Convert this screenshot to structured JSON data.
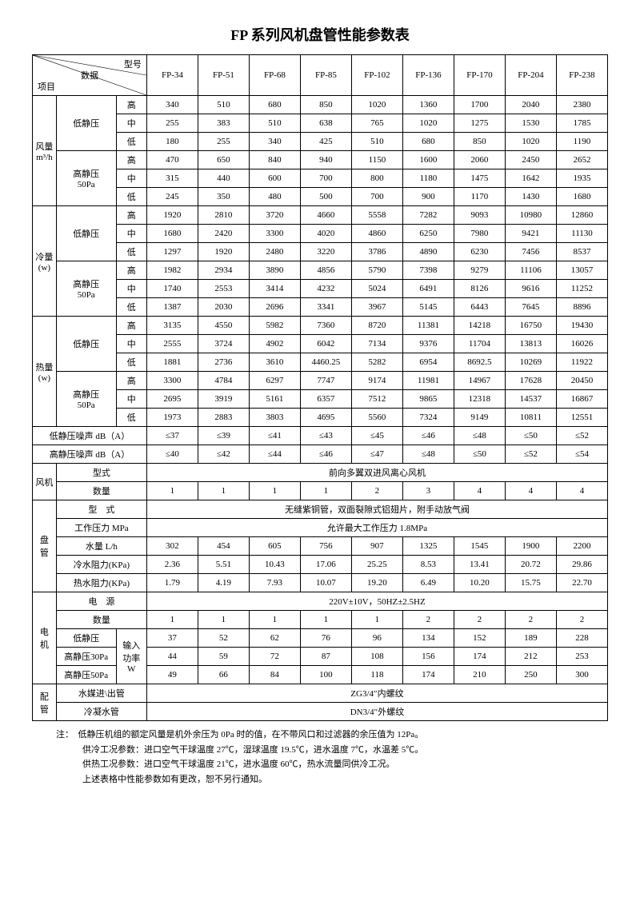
{
  "title": "FP 系列风机盘管性能参数表",
  "header_diag": {
    "top": "型号",
    "mid": "数据",
    "bot": "项目"
  },
  "models": [
    "FP-34",
    "FP-51",
    "FP-68",
    "FP-85",
    "FP-102",
    "FP-136",
    "FP-170",
    "FP-204",
    "FP-238"
  ],
  "row_labels": {
    "airflow": "风量\nm³/h",
    "cooling": "冷量\n(w)",
    "heating": "热量\n(w)",
    "low_sp": "低静压",
    "high_sp": "高静压\n50Pa",
    "hi": "高",
    "mid": "中",
    "lo": "低",
    "noise_low": "低静压噪声 dB（A）",
    "noise_high": "高静压噪声 dB（A）",
    "fan": "风机",
    "fan_type": "型式",
    "fan_qty": "数量",
    "coil": "盘\n管",
    "coil_type": "型　式",
    "coil_press": "工作压力 MPa",
    "coil_water": "水量 L/h",
    "coil_cold_r": "冷水阻力(KPa)",
    "coil_hot_r": "热水阻力(KPa)",
    "motor": "电\n机",
    "power_src": "电　源",
    "qty": "数量",
    "low_sp2": "低静压",
    "high_sp30": "高静压30Pa",
    "high_sp50": "高静压50Pa",
    "input_w": "输入\n功率\nW",
    "pipe": "配\n管",
    "pipe_in": "水媒进\\出管",
    "pipe_cond": "冷凝水管"
  },
  "airflow": {
    "low": {
      "hi": [
        340,
        510,
        680,
        850,
        1020,
        1360,
        1700,
        2040,
        2380
      ],
      "mid": [
        255,
        383,
        510,
        638,
        765,
        1020,
        1275,
        1530,
        1785
      ],
      "lo": [
        180,
        255,
        340,
        425,
        510,
        680,
        850,
        1020,
        1190
      ]
    },
    "high": {
      "hi": [
        470,
        650,
        840,
        940,
        1150,
        1600,
        2060,
        2450,
        2652
      ],
      "mid": [
        315,
        440,
        600,
        700,
        800,
        1180,
        1475,
        1642,
        1935
      ],
      "lo": [
        245,
        350,
        480,
        500,
        700,
        900,
        1170,
        1430,
        1680
      ]
    }
  },
  "cooling": {
    "low": {
      "hi": [
        1920,
        2810,
        3720,
        4660,
        5558,
        7282,
        9093,
        10980,
        12860
      ],
      "mid": [
        1680,
        2420,
        3300,
        4020,
        4860,
        6250,
        7980,
        9421,
        11130
      ],
      "lo": [
        1297,
        1920,
        2480,
        3220,
        3786,
        4890,
        6230,
        7456,
        8537
      ]
    },
    "high": {
      "hi": [
        1982,
        2934,
        3890,
        4856,
        5790,
        7398,
        9279,
        11106,
        13057
      ],
      "mid": [
        1740,
        2553,
        3414,
        4232,
        5024,
        6491,
        8126,
        9616,
        11252
      ],
      "lo": [
        1387,
        2030,
        2696,
        3341,
        3967,
        5145,
        6443,
        7645,
        8896
      ]
    }
  },
  "heating": {
    "low": {
      "hi": [
        3135,
        4550,
        5982,
        7360,
        8720,
        11381,
        14218,
        16750,
        19430
      ],
      "mid": [
        2555,
        3724,
        4902,
        6042,
        7134,
        9376,
        11704,
        13813,
        16026
      ],
      "lo": [
        1881,
        2736,
        3610,
        "4460.25",
        5282,
        6954,
        "8692.5",
        10269,
        11922
      ]
    },
    "high": {
      "hi": [
        3300,
        4784,
        6297,
        7747,
        9174,
        11981,
        14967,
        17628,
        20450
      ],
      "mid": [
        2695,
        3919,
        5161,
        6357,
        7512,
        9865,
        12318,
        14537,
        16867
      ],
      "lo": [
        1973,
        2883,
        3803,
        4695,
        5560,
        7324,
        9149,
        10811,
        12551
      ]
    }
  },
  "noise_low": [
    "≤37",
    "≤39",
    "≤41",
    "≤43",
    "≤45",
    "≤46",
    "≤48",
    "≤50",
    "≤52"
  ],
  "noise_high": [
    "≤40",
    "≤42",
    "≤44",
    "≤46",
    "≤47",
    "≤48",
    "≤50",
    "≤52",
    "≤54"
  ],
  "fan_type_text": "前向多翼双进风离心风机",
  "fan_qty": [
    1,
    1,
    1,
    1,
    2,
    3,
    4,
    4,
    4
  ],
  "coil_type_text": "无缝紫铜管，双面裂隙式铝翅片，附手动放气阀",
  "coil_press_text": "允许最大工作压力 1.8MPa",
  "coil_water": [
    302,
    454,
    605,
    756,
    907,
    1325,
    1545,
    1900,
    2200
  ],
  "coil_cold_r": [
    "2.36",
    "5.51",
    "10.43",
    "17.06",
    "25.25",
    "8.53",
    "13.41",
    "20.72",
    "29.86"
  ],
  "coil_hot_r": [
    "1.79",
    "4.19",
    "7.93",
    "10.07",
    "19.20",
    "6.49",
    "10.20",
    "15.75",
    "22.70"
  ],
  "power_src_text": "220V±10V，50HZ±2.5HZ",
  "motor_qty": [
    1,
    1,
    1,
    1,
    1,
    2,
    2,
    2,
    2
  ],
  "motor_low": [
    37,
    52,
    62,
    76,
    96,
    134,
    152,
    189,
    228
  ],
  "motor_h30": [
    44,
    59,
    72,
    87,
    108,
    156,
    174,
    212,
    253
  ],
  "motor_h50": [
    49,
    66,
    84,
    100,
    118,
    174,
    210,
    250,
    300
  ],
  "pipe_in_text": "ZG3/4″内螺纹",
  "pipe_cond_text": "DN3/4″外螺纹",
  "notes": [
    "注：　低静压机组的额定风量是机外余压为 0Pa 时的值，在不带风口和过滤器的余压值为 12Pa。",
    "　　　供冷工况参数：进口空气干球温度 27℃，湿球温度 19.5℃，进水温度 7℃，水温差 5℃。",
    "　　　供热工况参数：进口空气干球温度 21℃，进水温度 60℃，热水流量同供冷工况。",
    "　　　上述表格中性能参数如有更改，恕不另行通知。"
  ]
}
